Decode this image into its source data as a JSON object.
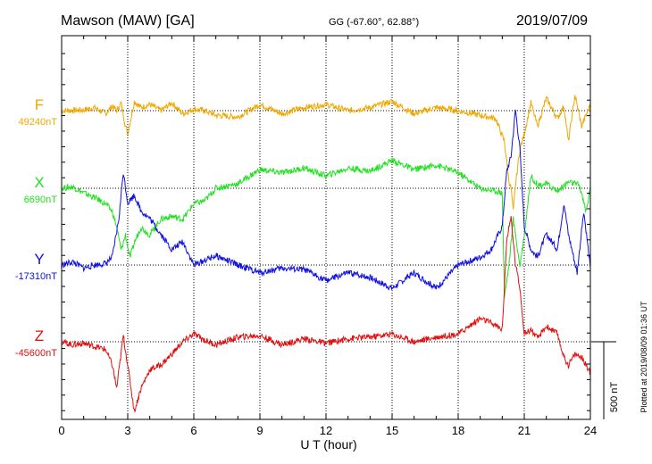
{
  "header": {
    "station": "Mawson (MAW)  [GA]",
    "coords": "GG (-67.60°,  62.88°)",
    "date": "2019/07/09"
  },
  "chart_data": {
    "type": "line",
    "title": "Mawson (MAW)  [GA]",
    "xlabel": "U T (hour)",
    "ylabel": "",
    "xlim": [
      0,
      24
    ],
    "xticks": [
      "0",
      "3",
      "6",
      "9",
      "12",
      "15",
      "18",
      "21",
      "24"
    ],
    "grid": true,
    "scale_bar": {
      "value": 500,
      "label": "500 nT"
    },
    "series": [
      {
        "name": "F",
        "baseline_label": "49240nT",
        "baseline": 49240,
        "color": "#f0a800",
        "x": [
          0,
          0.5,
          1,
          1.5,
          2,
          2.3,
          2.5,
          2.7,
          2.9,
          3.0,
          3.3,
          3.6,
          4,
          4.5,
          5,
          5.5,
          6,
          6.5,
          7,
          8,
          9,
          10,
          11,
          12,
          13,
          14,
          15,
          16,
          17,
          18,
          19,
          19.7,
          20.1,
          20.3,
          20.4,
          20.5,
          20.6,
          20.8,
          21,
          21.3,
          21.6,
          22,
          22.5,
          22.8,
          23,
          23.3,
          23.6,
          24
        ],
        "y": [
          0,
          2,
          4,
          20,
          -20,
          30,
          0,
          50,
          -100,
          -150,
          60,
          20,
          40,
          0,
          50,
          -20,
          10,
          0,
          -30,
          -40,
          40,
          -20,
          20,
          40,
          0,
          20,
          60,
          -20,
          20,
          0,
          -30,
          -50,
          -200,
          -450,
          -500,
          -650,
          -480,
          -250,
          -150,
          50,
          -100,
          80,
          -50,
          30,
          -200,
          100,
          -100,
          40
        ]
      },
      {
        "name": "X",
        "baseline_label": "6690nT",
        "baseline": 6690,
        "color": "#22e022",
        "x": [
          0,
          0.5,
          1,
          1.5,
          2,
          2.3,
          2.5,
          2.7,
          2.9,
          3.1,
          3.3,
          3.6,
          4,
          4.5,
          5,
          5.5,
          6,
          6.5,
          7,
          8,
          9,
          10,
          11,
          12,
          13,
          14,
          15,
          16,
          17,
          18,
          19,
          19.8,
          20.0,
          20.1,
          20.3,
          20.5,
          20.6,
          20.8,
          21,
          21.3,
          21.6,
          22,
          22.5,
          23,
          23.5,
          23.8,
          24
        ],
        "y": [
          0,
          10,
          -30,
          -60,
          -100,
          -150,
          -250,
          -400,
          -300,
          -450,
          -350,
          -250,
          -300,
          -200,
          -180,
          -200,
          -100,
          -80,
          0,
          30,
          120,
          100,
          130,
          80,
          130,
          110,
          180,
          120,
          150,
          100,
          0,
          -20,
          -30,
          -700,
          -500,
          -200,
          -300,
          -500,
          -300,
          80,
          20,
          30,
          -20,
          40,
          20,
          -150,
          0
        ]
      },
      {
        "name": "Y",
        "baseline_label": "-17310nT",
        "baseline": -17310,
        "color": "#1010e0",
        "x": [
          0,
          0.5,
          1,
          1.5,
          2,
          2.3,
          2.6,
          2.8,
          3.0,
          3.3,
          3.6,
          4,
          4.5,
          5,
          5.5,
          6,
          7,
          8,
          9,
          10,
          11,
          12,
          13,
          14,
          15,
          16,
          17,
          18,
          19,
          19.5,
          20.0,
          20.2,
          20.4,
          20.6,
          20.8,
          21,
          21.3,
          21.6,
          22,
          22.5,
          22.8,
          23,
          23.4,
          23.7,
          24
        ],
        "y": [
          0,
          20,
          -20,
          0,
          10,
          50,
          300,
          600,
          400,
          450,
          350,
          300,
          200,
          100,
          150,
          0,
          60,
          0,
          -50,
          -20,
          -30,
          -100,
          -50,
          -80,
          -150,
          -50,
          -150,
          0,
          50,
          100,
          250,
          600,
          700,
          1000,
          750,
          250,
          100,
          50,
          200,
          100,
          400,
          200,
          -50,
          350,
          -20
        ]
      },
      {
        "name": "Z",
        "baseline_label": "-45600nT",
        "baseline": -45600,
        "color": "#e01010",
        "x": [
          0,
          0.5,
          1,
          1.5,
          2,
          2.3,
          2.5,
          2.8,
          3.0,
          3.3,
          3.6,
          4,
          4.5,
          5,
          5.5,
          6,
          6.5,
          7,
          8,
          9,
          10,
          11,
          12,
          13,
          14,
          15,
          16,
          17,
          18,
          18.5,
          19,
          19.5,
          20.0,
          20.2,
          20.4,
          20.6,
          20.8,
          21,
          21.3,
          21.6,
          22,
          22.5,
          22.8,
          23,
          23.3,
          23.6,
          24
        ],
        "y": [
          0,
          -20,
          -10,
          -30,
          -50,
          -150,
          -300,
          40,
          -150,
          -450,
          -300,
          -180,
          -150,
          -80,
          0,
          50,
          10,
          -20,
          30,
          40,
          -20,
          20,
          -10,
          20,
          30,
          50,
          0,
          30,
          50,
          100,
          150,
          120,
          80,
          650,
          800,
          500,
          350,
          50,
          80,
          20,
          100,
          50,
          -100,
          -150,
          -80,
          -100,
          -200
        ]
      }
    ]
  },
  "side_note": "Plotted at 2019/08/09 01:36 UT"
}
